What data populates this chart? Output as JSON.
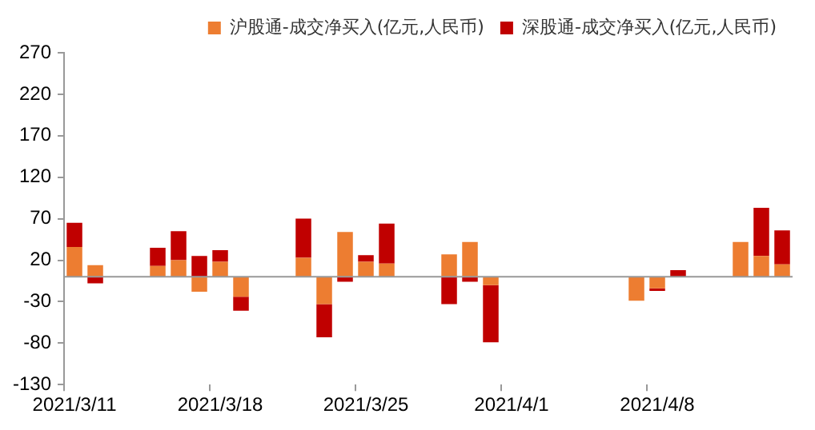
{
  "chart_data": {
    "type": "bar",
    "stacked": true,
    "categories": [
      "2021/3/11",
      null,
      null,
      null,
      null,
      null,
      null,
      "2021/3/18",
      null,
      null,
      null,
      null,
      null,
      null,
      "2021/3/25",
      null,
      null,
      null,
      null,
      null,
      null,
      "2021/4/1",
      null,
      null,
      null,
      null,
      null,
      null,
      "2021/4/8",
      null,
      null,
      null,
      null,
      null,
      null
    ],
    "series": [
      {
        "name": "沪股通-成交净买入(亿元,人民币)",
        "color": "#ed7d31",
        "values": [
          36,
          14,
          null,
          null,
          13,
          20,
          -18,
          18,
          -24,
          null,
          null,
          23,
          -33,
          54,
          18,
          16,
          null,
          null,
          27,
          42,
          -10,
          null,
          null,
          null,
          null,
          null,
          null,
          -29,
          -14,
          null,
          null,
          null,
          42,
          25,
          15
        ]
      },
      {
        "name": "深股通-成交净买入(亿元,人民币)",
        "color": "#c00000",
        "values": [
          29,
          -8,
          null,
          null,
          22,
          35,
          25,
          14,
          -17,
          null,
          null,
          47,
          -40,
          -6,
          8,
          48,
          null,
          null,
          -33,
          -6,
          -69,
          null,
          null,
          null,
          null,
          null,
          null,
          0,
          -3,
          8,
          null,
          null,
          0,
          58,
          41
        ]
      }
    ],
    "ylim": [
      -130,
      270
    ],
    "yticks": [
      -130,
      -80,
      -30,
      20,
      70,
      120,
      170,
      220,
      270
    ],
    "grid": false,
    "legend": "top right"
  }
}
